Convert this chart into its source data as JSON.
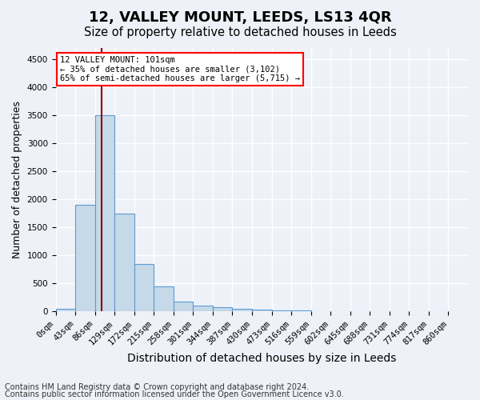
{
  "title": "12, VALLEY MOUNT, LEEDS, LS13 4QR",
  "subtitle": "Size of property relative to detached houses in Leeds",
  "xlabel": "Distribution of detached houses by size in Leeds",
  "ylabel": "Number of detached properties",
  "bin_labels": [
    "0sqm",
    "43sqm",
    "86sqm",
    "129sqm",
    "172sqm",
    "215sqm",
    "258sqm",
    "301sqm",
    "344sqm",
    "387sqm",
    "430sqm",
    "473sqm",
    "516sqm",
    "559sqm",
    "602sqm",
    "645sqm",
    "688sqm",
    "731sqm",
    "774sqm",
    "817sqm",
    "860sqm"
  ],
  "bin_values": [
    50,
    1900,
    3500,
    1750,
    850,
    450,
    175,
    100,
    75,
    50,
    30,
    20,
    15,
    12,
    10,
    8,
    6,
    5,
    4,
    3,
    2
  ],
  "bar_color": "#c6d9e8",
  "bar_edge_color": "#5B9BD5",
  "vline_color": "darkred",
  "annotation_text": "12 VALLEY MOUNT: 101sqm\n← 35% of detached houses are smaller (3,102)\n65% of semi-detached houses are larger (5,715) →",
  "annotation_box_color": "white",
  "annotation_box_edge_color": "red",
  "ylim": [
    0,
    4700
  ],
  "yticks": [
    0,
    500,
    1000,
    1500,
    2000,
    2500,
    3000,
    3500,
    4000,
    4500
  ],
  "footnote1": "Contains HM Land Registry data © Crown copyright and database right 2024.",
  "footnote2": "Contains public sector information licensed under the Open Government Licence v3.0.",
  "bg_color": "#eef2f8",
  "grid_color": "white",
  "title_fontsize": 13,
  "subtitle_fontsize": 10.5,
  "axis_label_fontsize": 9,
  "tick_fontsize": 7.5,
  "footnote_fontsize": 7.0,
  "vline_pos": 2.35
}
